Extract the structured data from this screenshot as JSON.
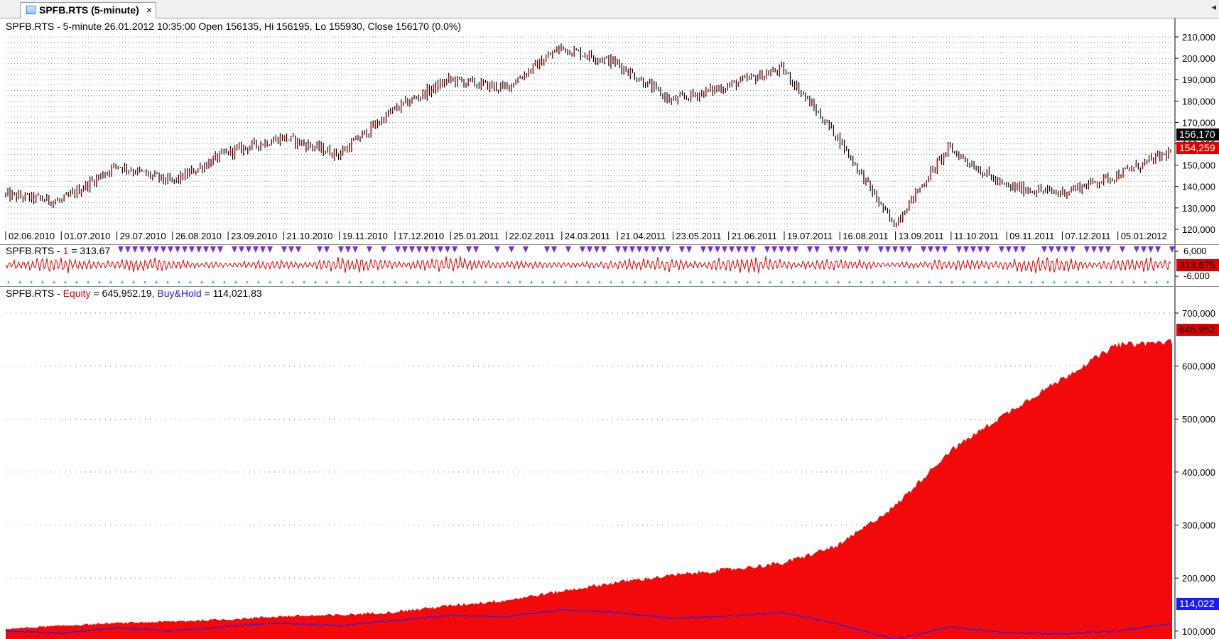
{
  "tab": {
    "title": "SPFB.RTS (5-minute)",
    "close_glyph": "×",
    "nav_arrow": "◂"
  },
  "colors": {
    "equity_fill": "#f20a0a",
    "buyhold_line": "#1a1aff",
    "price_wick": "#000000",
    "price_body": "#d40000",
    "osc_line": "#e00000",
    "marker_purple": "#7a2fd0",
    "marker_cyan": "#00c8d8"
  },
  "price_panel": {
    "title_text": "SPFB.RTS - 5-minute 26.01.2012 10:35:00 Open 156135, Hi 156195, Lo 155930, Close 156170 (0.0%)",
    "y_ticks": [
      "210,000",
      "200,000",
      "190,000",
      "180,000",
      "170,000",
      "160,000",
      "150,000",
      "140,000",
      "130,000",
      "120,000"
    ],
    "last_label": "156,170",
    "ma_label": "154,259",
    "date_labels": [
      "02.06.2010",
      "01.07.2010",
      "29.07.2010",
      "26.08.2010",
      "23.09.2010",
      "21.10.2010",
      "19.11.2010",
      "17.12.2010",
      "25.01.2011",
      "22.02.2011",
      "24.03.2011",
      "21.04.2011",
      "23.05.2011",
      "21.06.2011",
      "19.07.2011",
      "16.08.2011",
      "13.09.2011",
      "11.10.2011",
      "09.11.2011",
      "07.12.2011",
      "05.01.2012"
    ]
  },
  "osc_panel": {
    "prefix": "SPFB.RTS - ",
    "series_name": "1",
    "value_text": " = 313.67",
    "y_ticks": [
      "6,000",
      "-6,000"
    ],
    "last_label": "313.675"
  },
  "equity_panel": {
    "prefix": "SPFB.RTS - ",
    "equity_name": "Equity",
    "equity_value": " = 645,952.19, ",
    "bh_name": "Buy&Hold",
    "bh_value": " = 114,021.83",
    "y_ticks": [
      "700,000",
      "600,000",
      "500,000",
      "400,000",
      "300,000",
      "200,000",
      "100,000"
    ],
    "equity_last": "645,952",
    "bh_last": "114,022"
  },
  "chart_data": [
    {
      "type": "line",
      "title": "SPFB.RTS - 5-minute 26.01.2012 10:35:00 Open 156135, Hi 156195, Lo 155930, Close 156170 (0.0%)",
      "series": [
        {
          "name": "SPFB.RTS",
          "x": [
            "02.06.2010",
            "01.07.2010",
            "29.07.2010",
            "26.08.2010",
            "23.09.2010",
            "21.10.2010",
            "19.11.2010",
            "17.12.2010",
            "25.01.2011",
            "22.02.2011",
            "24.03.2011",
            "21.04.2011",
            "23.05.2011",
            "21.06.2011",
            "19.07.2011",
            "16.08.2011",
            "13.09.2011",
            "11.10.2011",
            "09.11.2011",
            "07.12.2011",
            "05.01.2012",
            "26.01.2012"
          ],
          "values": [
            136000,
            133000,
            150000,
            142000,
            156000,
            163000,
            155000,
            176000,
            190000,
            186000,
            205000,
            198000,
            180000,
            187000,
            195000,
            163000,
            122000,
            158000,
            140000,
            137000,
            145000,
            156170
          ]
        }
      ],
      "ylim": [
        115000,
        212000
      ],
      "grid": true
    },
    {
      "type": "line",
      "title": "SPFB.RTS - 1 = 313.67",
      "series": [
        {
          "name": "1",
          "last": 313.675
        }
      ],
      "ylim": [
        -8000,
        8000
      ]
    },
    {
      "type": "area",
      "title": "SPFB.RTS - Equity = 645,952.19, Buy&Hold = 114,021.83",
      "x": [
        "02.06.2010",
        "01.07.2010",
        "29.07.2010",
        "26.08.2010",
        "23.09.2010",
        "21.10.2010",
        "19.11.2010",
        "17.12.2010",
        "25.01.2011",
        "22.02.2011",
        "24.03.2011",
        "21.04.2011",
        "23.05.2011",
        "21.06.2011",
        "19.07.2011",
        "16.08.2011",
        "13.09.2011",
        "11.10.2011",
        "09.11.2011",
        "07.12.2011",
        "05.01.2012",
        "26.01.2012"
      ],
      "series": [
        {
          "name": "Equity",
          "values": [
            104000,
            110000,
            115000,
            118000,
            122000,
            128000,
            130000,
            136000,
            148000,
            158000,
            175000,
            192000,
            205000,
            216000,
            228000,
            262000,
            335000,
            440000,
            510000,
            575000,
            640000,
            645952
          ]
        },
        {
          "name": "Buy&Hold",
          "values": [
            100000,
            96000,
            106000,
            100000,
            109000,
            115000,
            110000,
            120000,
            129000,
            127000,
            140000,
            135000,
            124000,
            128000,
            135000,
            113000,
            84000,
            108000,
            97000,
            95000,
            100000,
            114022
          ]
        }
      ],
      "ylim": [
        85000,
        720000
      ],
      "grid": true
    }
  ]
}
